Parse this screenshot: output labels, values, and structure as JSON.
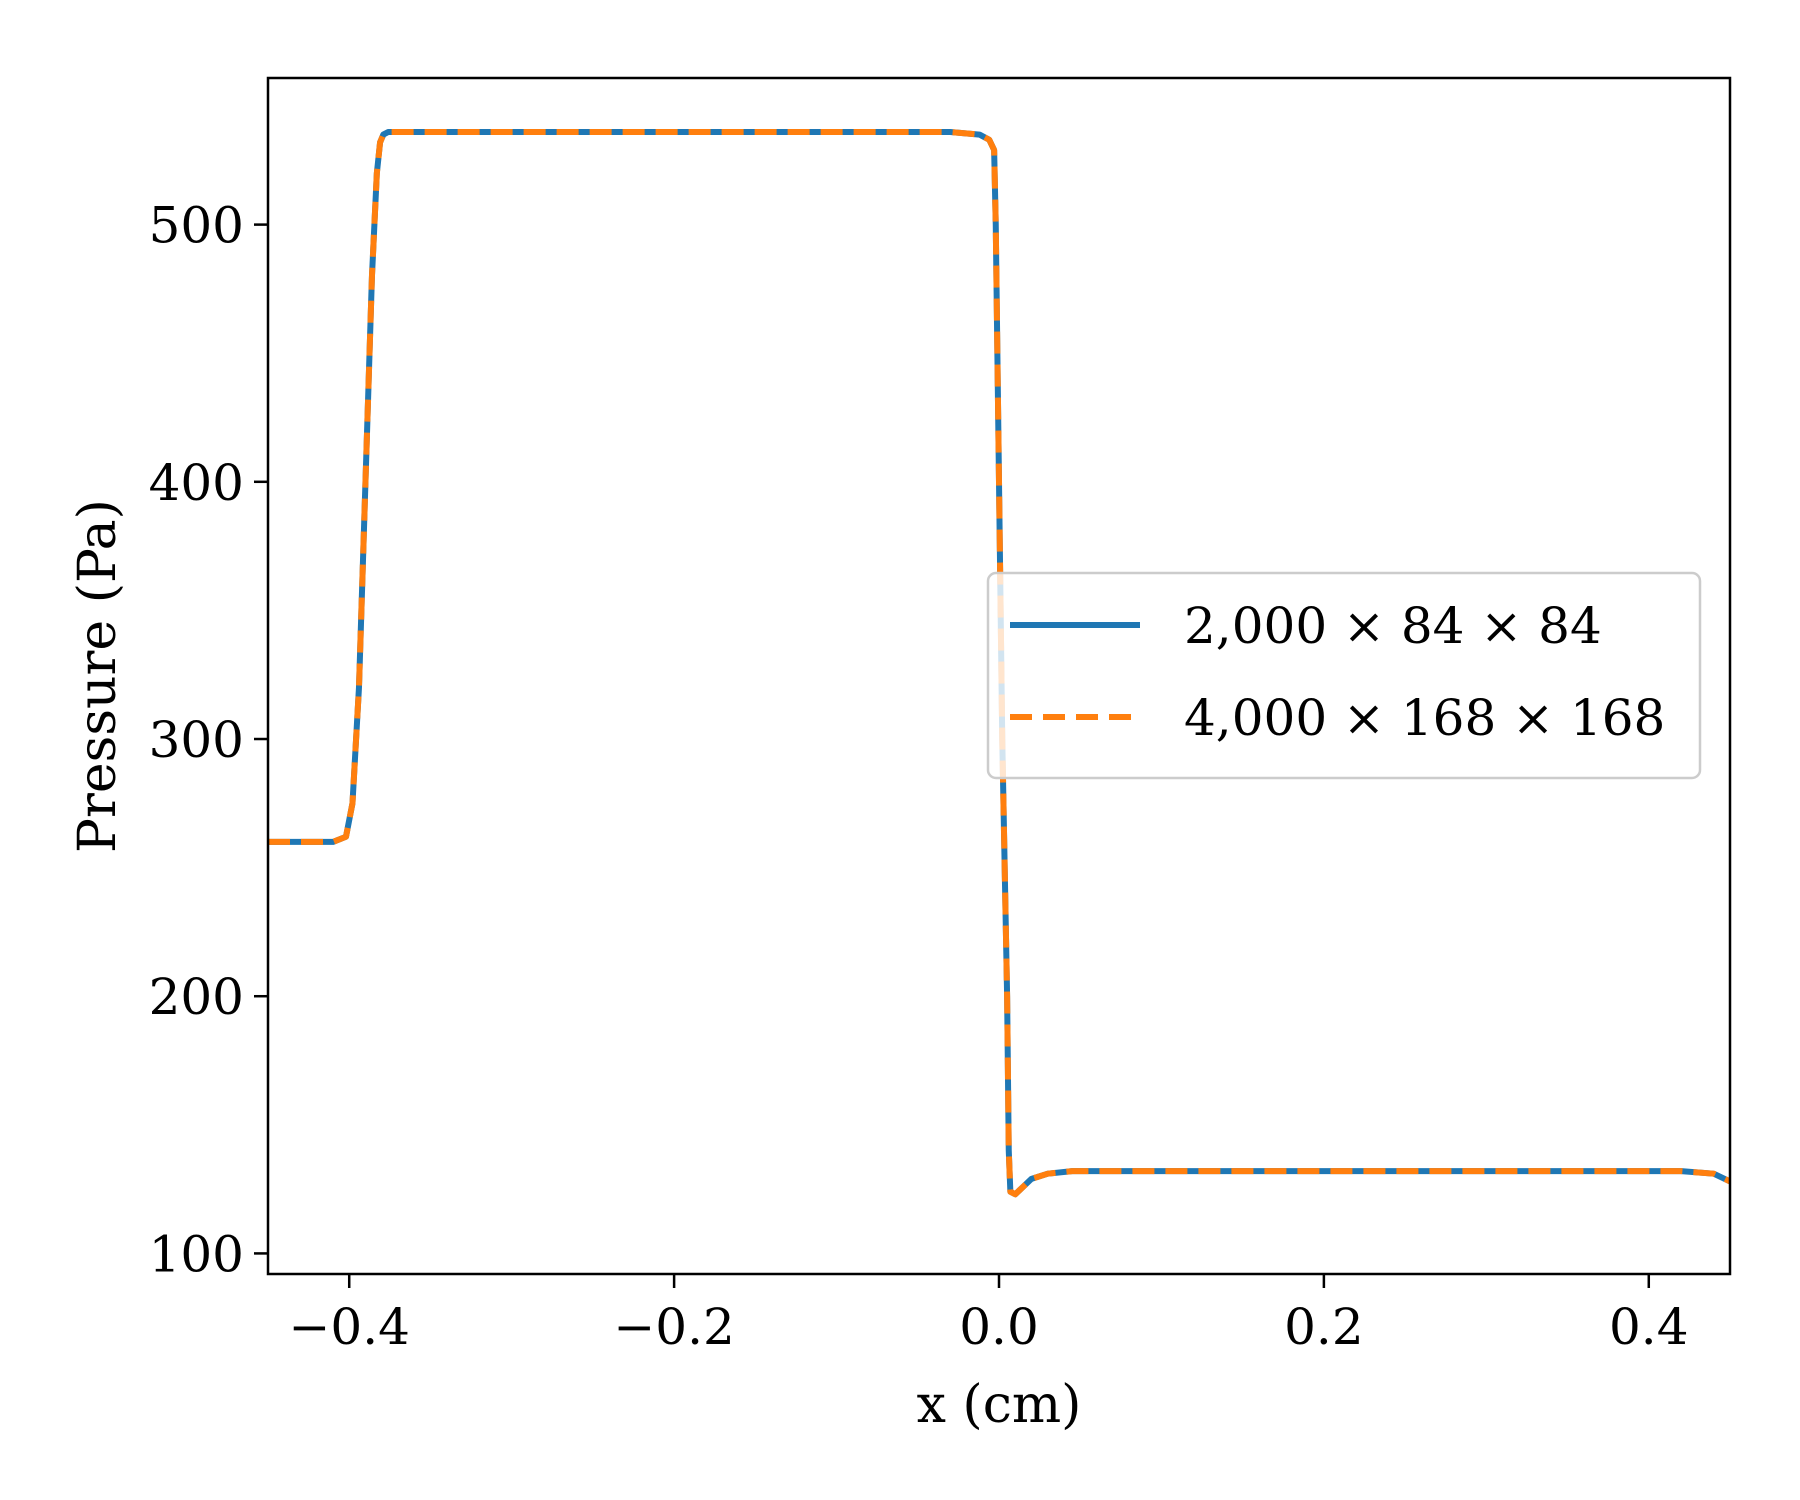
{
  "chart_data": {
    "type": "line",
    "xlabel": "x (cm)",
    "ylabel": "Pressure (Pa)",
    "xlim": [
      -0.45,
      0.45
    ],
    "ylim": [
      92,
      557
    ],
    "x_ticks": [
      -0.4,
      -0.2,
      0.0,
      0.2,
      0.4
    ],
    "x_tick_labels": [
      "−0.4",
      "−0.2",
      "0.0",
      "0.2",
      "0.4"
    ],
    "y_ticks": [
      100,
      200,
      300,
      400,
      500
    ],
    "y_tick_labels": [
      "100",
      "200",
      "300",
      "400",
      "500"
    ],
    "grid": false,
    "legend_position": "center-right",
    "series": [
      {
        "name": "2,000 × 84 × 84",
        "color": "#1f77b4",
        "style": "solid",
        "x": [
          -0.45,
          -0.41,
          -0.402,
          -0.398,
          -0.394,
          -0.39,
          -0.386,
          -0.383,
          -0.381,
          -0.379,
          -0.376,
          -0.37,
          -0.2,
          -0.03,
          -0.012,
          -0.006,
          -0.003,
          -0.002,
          0.0,
          0.002,
          0.005,
          0.006,
          0.007,
          0.01,
          0.015,
          0.02,
          0.03,
          0.045,
          0.1,
          0.3,
          0.4,
          0.42,
          0.44,
          0.45
        ],
        "y": [
          260,
          260,
          262,
          275,
          320,
          400,
          480,
          520,
          532,
          535,
          536,
          536,
          536,
          536,
          535,
          533,
          529,
          500,
          400,
          300,
          200,
          140,
          124,
          123,
          126,
          129,
          131,
          132,
          132,
          132,
          132,
          132,
          131,
          128
        ]
      },
      {
        "name": "4,000 × 168 × 168",
        "color": "#ff7f0e",
        "style": "dashed",
        "x": [
          -0.45,
          -0.41,
          -0.402,
          -0.398,
          -0.394,
          -0.39,
          -0.386,
          -0.383,
          -0.381,
          -0.379,
          -0.376,
          -0.37,
          -0.2,
          -0.03,
          -0.012,
          -0.006,
          -0.003,
          -0.002,
          0.0,
          0.002,
          0.005,
          0.006,
          0.007,
          0.01,
          0.015,
          0.02,
          0.03,
          0.045,
          0.1,
          0.3,
          0.4,
          0.42,
          0.44,
          0.45
        ],
        "y": [
          260,
          260,
          262,
          275,
          320,
          400,
          480,
          520,
          532,
          535,
          536,
          536,
          536,
          536,
          535,
          533,
          529,
          500,
          400,
          300,
          200,
          140,
          124,
          123,
          126,
          129,
          131,
          132,
          132,
          132,
          132,
          132,
          131,
          128
        ]
      }
    ]
  }
}
